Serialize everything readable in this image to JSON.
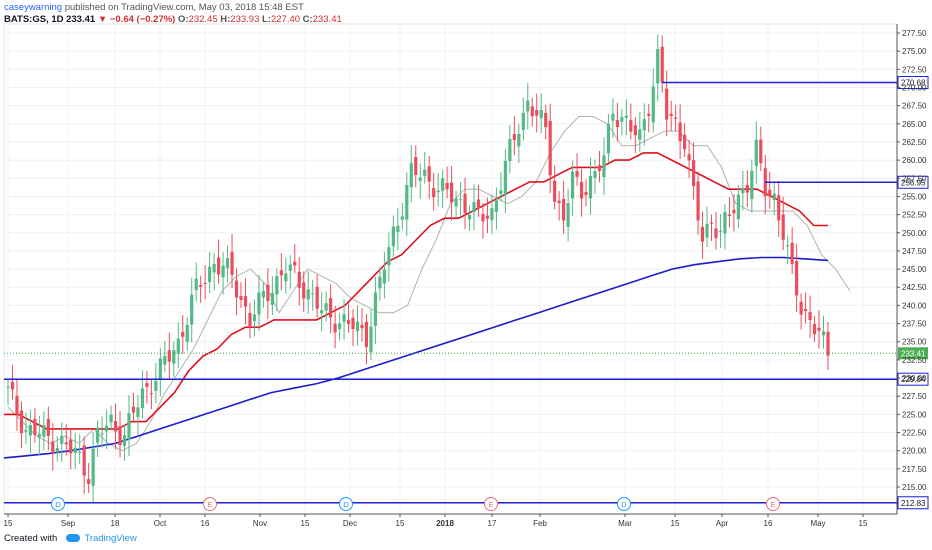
{
  "header": {
    "publisher": "caseywarning",
    "published_text": "published on TradingView.com, May 03, 2018 15:48 EST",
    "symbol": "BATS:GS, 1D",
    "last": "233.41",
    "change": "−0.64 (−0.27%)",
    "o_label": "O:",
    "o_value": "232.45",
    "h_label": "H:",
    "h_value": "233.93",
    "l_label": "L:",
    "l_value": "227.40",
    "c_label": "C:",
    "c_value": "233.41"
  },
  "footer": {
    "created_with": "Created with",
    "brand": "TradingView"
  },
  "colors": {
    "up": "#53b987",
    "down": "#eb4d5c",
    "ma_fast": "#b2b2b2",
    "ma_mid": "#e0101b",
    "ma_slow": "#1a1acc",
    "hline": "#1f1fd6",
    "last_badge": "#4caf50",
    "marker_d": "#2196f3",
    "marker_e": "#e57373"
  },
  "chart_data": {
    "type": "candlestick",
    "ylim": [
      212.5,
      277.5
    ],
    "y_ticks": [
      "277.50",
      "275.00",
      "272.50",
      "270.00",
      "267.50",
      "265.00",
      "262.50",
      "260.00",
      "257.50",
      "255.00",
      "252.50",
      "250.00",
      "247.50",
      "245.00",
      "242.50",
      "240.00",
      "237.50",
      "235.00",
      "232.50",
      "230.00",
      "227.50",
      "225.00",
      "222.50",
      "220.00",
      "217.50",
      "215.00"
    ],
    "x_labels": [
      "15",
      "Sep",
      "18",
      "Oct",
      "16",
      "Nov",
      "15",
      "Dec",
      "15",
      "2018",
      "17",
      "Feb",
      "Mar",
      "15",
      "Apr",
      "16",
      "May",
      "15"
    ],
    "price_lines": [
      {
        "label": "270.68",
        "value": 270.68,
        "from_index": "Mar 12"
      },
      {
        "label": "256.95",
        "value": 256.95,
        "from_index": "Apr 16"
      },
      {
        "label": "229.84",
        "value": 229.84,
        "from_index": "start"
      },
      {
        "label": "212.83",
        "value": 212.83,
        "from_index": "start"
      }
    ],
    "last_price": {
      "label": "233.41",
      "value": 233.41
    },
    "events": [
      {
        "type": "D",
        "date": "Aug 29"
      },
      {
        "type": "E",
        "date": "Oct 16"
      },
      {
        "type": "D",
        "date": "Nov 29"
      },
      {
        "type": "E",
        "date": "Jan 17"
      },
      {
        "type": "D",
        "date": "Feb 27"
      },
      {
        "type": "E",
        "date": "Apr 17"
      }
    ],
    "candles": [],
    "moving_averages": [
      {
        "period": "fast",
        "points": [
          226,
          224,
          222,
          221,
          222,
          221,
          223,
          221,
          220,
          221,
          224,
          228,
          231,
          234,
          238,
          242,
          244,
          245,
          243,
          239,
          242,
          245,
          244,
          243,
          241,
          240,
          239,
          239,
          240,
          245,
          249,
          254,
          256,
          256,
          255,
          254,
          255,
          257,
          261,
          264,
          266,
          266,
          265,
          262,
          262,
          263,
          264,
          264,
          262,
          262,
          259,
          254,
          253,
          253,
          253,
          253,
          251,
          247,
          245,
          242
        ]
      },
      {
        "period": "mid",
        "points": [
          225,
          225,
          224,
          223,
          223,
          223,
          223,
          223,
          223,
          224,
          224,
          226,
          228,
          231,
          233,
          234,
          236,
          237,
          237,
          238,
          238,
          238,
          238,
          239,
          240,
          242,
          244,
          246,
          247,
          249,
          251,
          252,
          252,
          253,
          254,
          255,
          256,
          257,
          257,
          258,
          259,
          259,
          259,
          260,
          260,
          261,
          261,
          260,
          259,
          258,
          257,
          256,
          256,
          256,
          255,
          254,
          253,
          251,
          251
        ]
      },
      {
        "period": "slow",
        "points": [
          219,
          219.3,
          219.6,
          220,
          220.5,
          221,
          222,
          223,
          224,
          225,
          226,
          227,
          228,
          228.6,
          229.2,
          230,
          231,
          232,
          233,
          234,
          235,
          236,
          237,
          238,
          239,
          240,
          241,
          242,
          243,
          244,
          245,
          245.6,
          246,
          246.4,
          246.6,
          246.6,
          246.4,
          246.2
        ]
      }
    ]
  }
}
